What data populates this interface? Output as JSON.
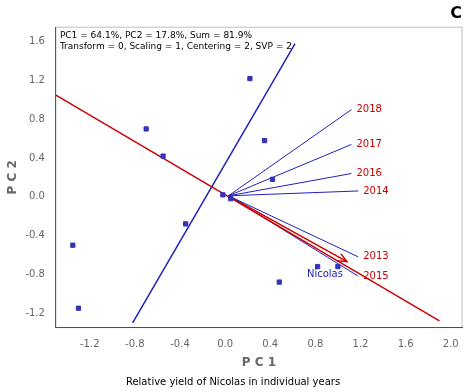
{
  "chart_data": {
    "type": "scatter",
    "title": "C",
    "subtitle": "Relative yield of Nicolas in individual years",
    "annotations": [
      "PC1 = 64.1%, PC2 = 17.8%, Sum = 81.9%",
      "Transform = 0, Scaling = 1, Centering = 2, SVP = 2"
    ],
    "x_label": "P C 1",
    "y_label": "P C 2",
    "xlim": [
      -1.5,
      2.1
    ],
    "ylim": [
      -1.35,
      1.75
    ],
    "xticks": [
      -1.2,
      -0.8,
      -0.4,
      {
        "value": 0,
        "label": "0.0"
      },
      0.4,
      0.8,
      1.2,
      1.6,
      {
        "value": 2,
        "label": "2.0"
      }
    ],
    "yticks": [
      -1.2,
      -0.8,
      -0.4,
      {
        "value": 0,
        "label": "0.0"
      },
      0.4,
      0.8,
      1.2,
      1.6
    ],
    "grid": false,
    "series": [
      {
        "type": "scatter",
        "color": "#3333bb",
        "marker": "square",
        "points": [
          [
            -1.35,
            -0.5
          ],
          [
            -1.3,
            -1.15
          ],
          [
            -0.7,
            0.7
          ],
          [
            -0.55,
            0.42
          ],
          [
            -0.35,
            -0.28
          ],
          [
            -0.02,
            0.02
          ],
          [
            0.05,
            -0.02
          ],
          [
            0.22,
            1.22
          ],
          [
            0.35,
            0.58
          ],
          [
            0.42,
            0.18
          ],
          [
            0.48,
            -0.88
          ],
          [
            0.82,
            -0.72
          ],
          [
            1.0,
            -0.72
          ]
        ]
      },
      {
        "type": "line",
        "color": "#cc0000",
        "points": [
          [
            -1.5,
            1.05
          ],
          [
            1.9,
            -1.28
          ]
        ]
      },
      {
        "type": "line",
        "color": "#2222bb",
        "points": [
          [
            -0.82,
            -1.3
          ],
          [
            0.62,
            1.58
          ]
        ]
      },
      {
        "type": "line",
        "color": "#2222bb",
        "label": "2018",
        "label_color": "#cc0000",
        "points": [
          [
            0.03,
            0.01
          ],
          [
            1.12,
            0.9
          ]
        ]
      },
      {
        "type": "line",
        "color": "#2222bb",
        "label": "2017",
        "label_color": "#cc0000",
        "points": [
          [
            0.03,
            0.01
          ],
          [
            1.12,
            0.54
          ]
        ]
      },
      {
        "type": "line",
        "color": "#2222bb",
        "label": "2016",
        "label_color": "#cc0000",
        "points": [
          [
            0.03,
            0.01
          ],
          [
            1.12,
            0.24
          ]
        ]
      },
      {
        "type": "line",
        "color": "#2222bb",
        "label": "2014",
        "label_color": "#cc0000",
        "points": [
          [
            0.03,
            0.01
          ],
          [
            1.18,
            0.06
          ]
        ]
      },
      {
        "type": "line",
        "color": "#2222bb",
        "label": "2013",
        "label_color": "#cc0000",
        "points": [
          [
            0.03,
            0.01
          ],
          [
            1.18,
            -0.62
          ]
        ]
      },
      {
        "type": "line",
        "color": "#2222bb",
        "label": "2015",
        "label_color": "#cc0000",
        "points": [
          [
            0.03,
            0.01
          ],
          [
            1.18,
            -0.82
          ]
        ]
      },
      {
        "type": "arrow",
        "color": "#cc0000",
        "label": "Nicolas",
        "label_color": "#2222bb",
        "points": [
          [
            0.03,
            0.01
          ],
          [
            1.08,
            -0.67
          ]
        ]
      }
    ]
  }
}
